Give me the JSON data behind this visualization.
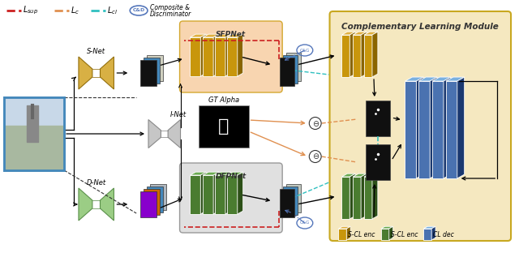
{
  "fig_width": 6.4,
  "fig_height": 3.12,
  "dpi": 100,
  "bg_color": "#ffffff",
  "clm_bg": "#f5e8c0",
  "clm_title": "Complementary Learning Module",
  "sfpnet_bg": "#f8d5b0",
  "sfpnet_title": "SFPNet",
  "dfpnet_bg": "#e0e0e0",
  "dfpnet_title": "DFPNet",
  "gt_alpha_title": "GT Alpha",
  "snet_label": "S-Net",
  "inet_label": "I-Net",
  "dnet_label": "D-Net",
  "scl_enc1_label": "S-CL enc",
  "scl_enc2_label": "S-CL enc",
  "cl_dec_label": "CL dec",
  "gold_color": "#c8960c",
  "gold_dark": "#8a6500",
  "gold_light": "#e0b040",
  "green_color": "#4a7c30",
  "green_dark": "#2d5018",
  "green_light": "#6aaa50",
  "blue_color": "#4a72b0",
  "blue_dark": "#1a3870",
  "blue_light": "#7ab0e0",
  "snet_color": "#d4a830",
  "snet_dark": "#8a6500",
  "inet_color": "#c0c0c0",
  "inet_dark": "#808080",
  "dnet_color": "#90c878",
  "dnet_dark": "#508840",
  "red_arrow": "#cc2020",
  "orange_arrow": "#e09050",
  "cyan_arrow": "#30c0c0",
  "cd_color": "#5577bb"
}
